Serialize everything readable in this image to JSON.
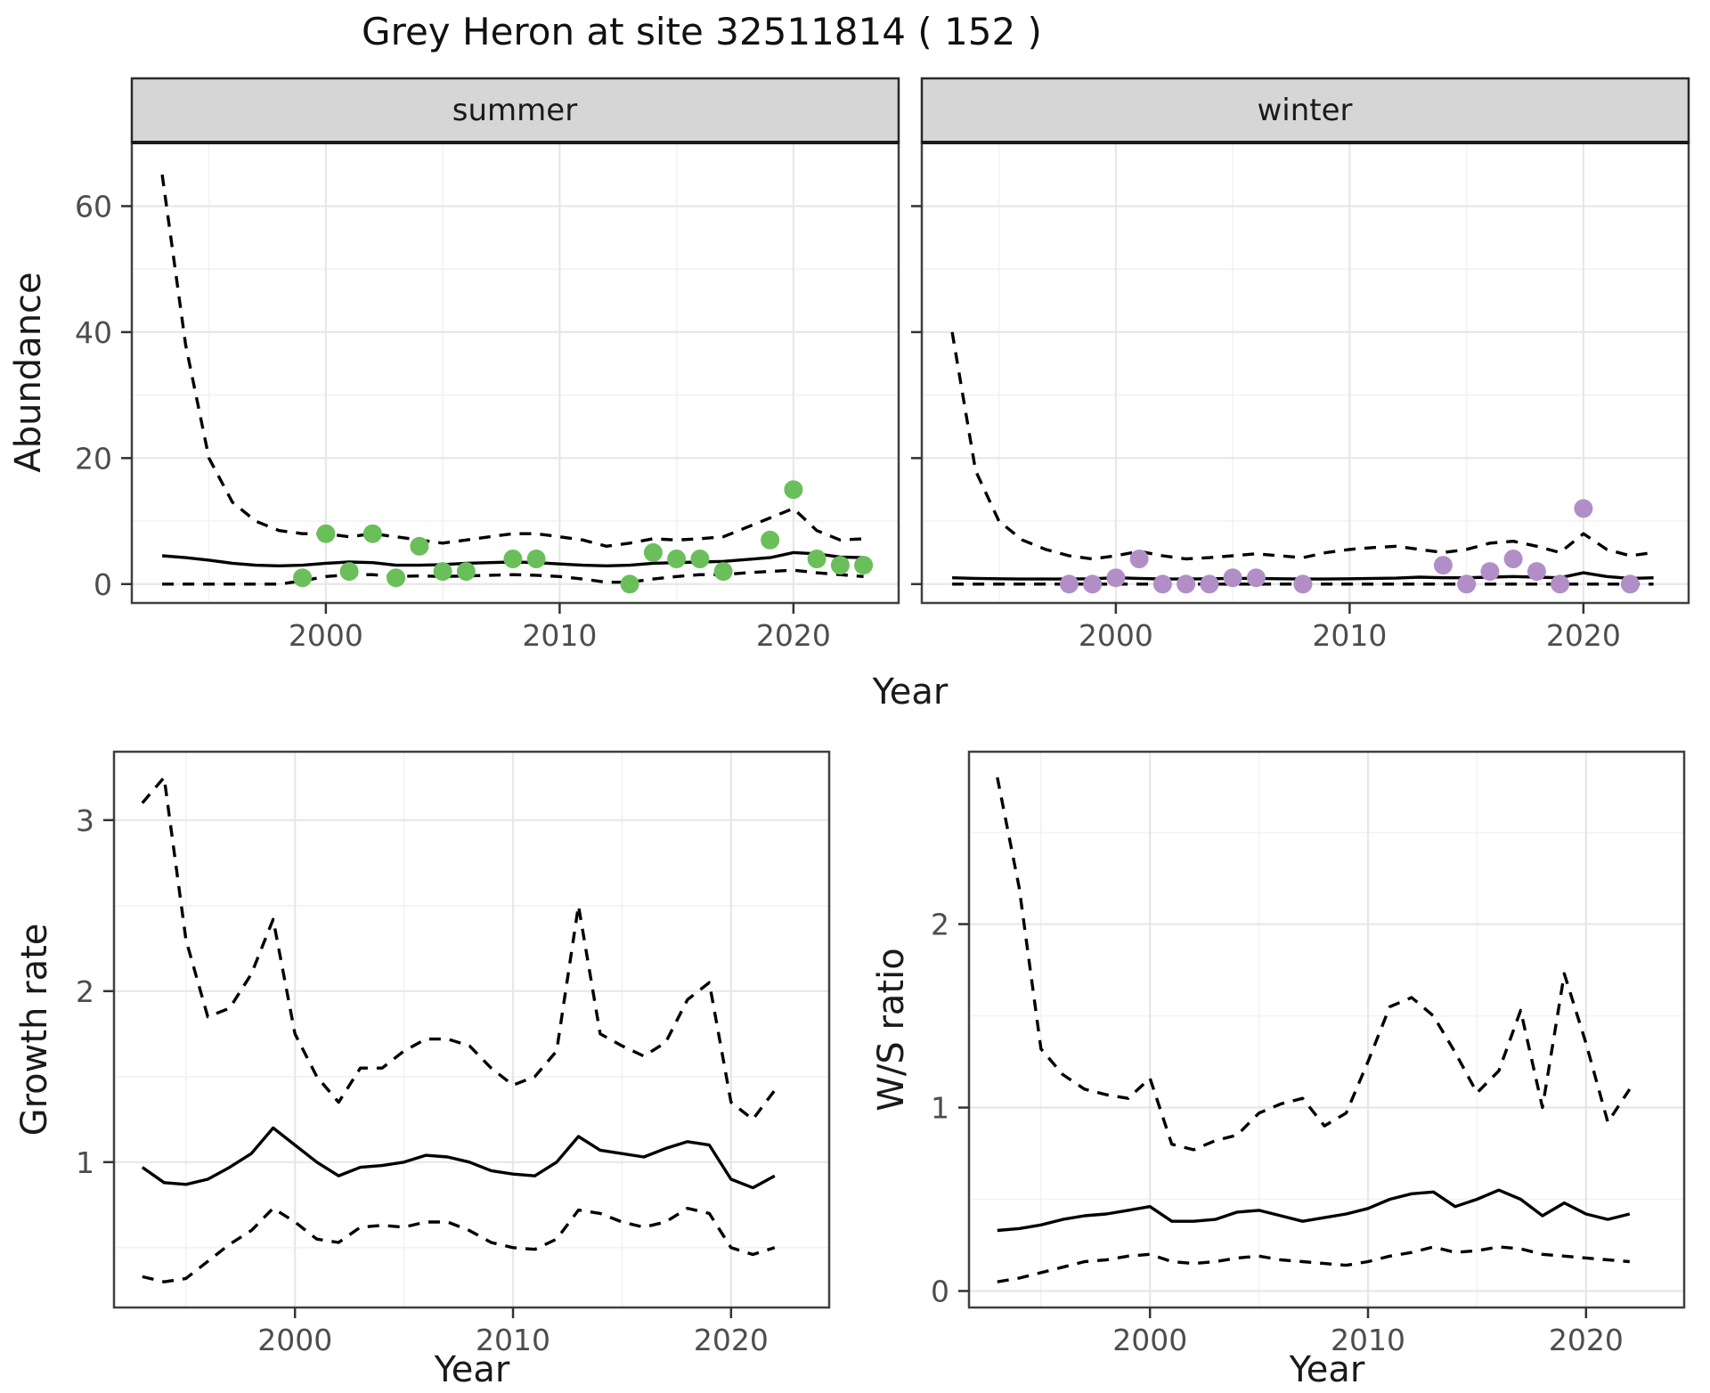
{
  "title": "Grey Heron at site 32511814 ( 152 )",
  "labels": {
    "abundance_axis": "Abundance",
    "year_axis_top": "Year",
    "year_axis_bottom_left": "Year",
    "year_axis_bottom_right": "Year",
    "growth_axis": "Growth rate",
    "ws_axis": "W/S ratio",
    "facet_summer": "summer",
    "facet_winter": "winter"
  },
  "colors": {
    "summer_point": "#6abf5a",
    "winter_point": "#b18fc6",
    "line": "#000000",
    "strip_bg": "#d6d6d6",
    "strip_border": "#2a2a2a",
    "panel_border": "#404040",
    "panel_bg": "#ffffff",
    "grid_major": "#e7e7e7",
    "grid_minor": "#f2f2f2",
    "tick_mark": "#333333",
    "tick_text": "#4d4d4d"
  },
  "chart_data": [
    {
      "id": "abundance_summer",
      "type": "line",
      "facet": "summer",
      "title": "summer",
      "xlabel": "Year",
      "ylabel": "Abundance",
      "xlim": [
        1991.7,
        2024.5
      ],
      "ylim": [
        -3,
        70.1
      ],
      "xticks": [
        2000,
        2010,
        2020
      ],
      "xminor": [
        1995,
        2005,
        2015
      ],
      "yticks": [
        0,
        20,
        40,
        60
      ],
      "yminor": [
        10,
        30,
        50
      ],
      "legend_position": "none",
      "grid": true,
      "x": [
        1993,
        1994,
        1995,
        1996,
        1997,
        1998,
        1999,
        2000,
        2001,
        2002,
        2003,
        2004,
        2005,
        2006,
        2007,
        2008,
        2009,
        2010,
        2011,
        2012,
        2013,
        2014,
        2015,
        2016,
        2017,
        2018,
        2019,
        2020,
        2021,
        2022,
        2023
      ],
      "series": [
        {
          "name": "median",
          "style": "solid",
          "values": [
            4.5,
            4.2,
            3.8,
            3.3,
            3.0,
            2.9,
            3.0,
            3.3,
            3.5,
            3.4,
            3.0,
            3.0,
            3.1,
            3.3,
            3.4,
            3.5,
            3.4,
            3.2,
            3.0,
            2.9,
            3.0,
            3.3,
            3.4,
            3.5,
            3.6,
            3.9,
            4.2,
            5.0,
            4.8,
            4.3,
            4.2
          ]
        },
        {
          "name": "upper_ci",
          "style": "dashed",
          "values": [
            65,
            38,
            20,
            13,
            10,
            8.5,
            8,
            8,
            7.5,
            8,
            7.5,
            7,
            6.5,
            7,
            7.5,
            8,
            8,
            7.5,
            7,
            6,
            6.5,
            7.2,
            7,
            7.2,
            7.5,
            9,
            10.5,
            12,
            8.5,
            7,
            7.2
          ]
        },
        {
          "name": "lower_ci",
          "style": "dashed",
          "values": [
            0,
            0,
            0,
            0,
            0,
            0,
            0.5,
            1.2,
            1.5,
            1.5,
            1.2,
            1.3,
            1.2,
            1.3,
            1.4,
            1.5,
            1.4,
            1.2,
            0.8,
            0.3,
            0.3,
            0.8,
            1.2,
            1.5,
            1.5,
            1.8,
            2.0,
            2.2,
            1.8,
            1.5,
            1.2
          ]
        }
      ],
      "points": {
        "name": "summer observed counts",
        "color": "#6abf5a",
        "x": [
          1999,
          2000,
          2001,
          2002,
          2003,
          2004,
          2005,
          2006,
          2008,
          2009,
          2013,
          2014,
          2015,
          2016,
          2017,
          2019,
          2020,
          2021,
          2022,
          2023
        ],
        "y": [
          1,
          8,
          2,
          8,
          1,
          6,
          2,
          2,
          4,
          4,
          0,
          5,
          4,
          4,
          2,
          7,
          15,
          4,
          3,
          3
        ]
      }
    },
    {
      "id": "abundance_winter",
      "type": "line",
      "facet": "winter",
      "title": "winter",
      "xlabel": "Year",
      "ylabel": "Abundance",
      "xlim": [
        1991.7,
        2024.5
      ],
      "ylim": [
        -3,
        70.1
      ],
      "xticks": [
        2000,
        2010,
        2020
      ],
      "xminor": [
        1995,
        2005,
        2015
      ],
      "yticks": [
        0,
        20,
        40,
        60
      ],
      "yminor": [
        10,
        30,
        50
      ],
      "legend_position": "none",
      "grid": true,
      "x": [
        1993,
        1994,
        1995,
        1996,
        1997,
        1998,
        1999,
        2000,
        2001,
        2002,
        2003,
        2004,
        2005,
        2006,
        2007,
        2008,
        2009,
        2010,
        2011,
        2012,
        2013,
        2014,
        2015,
        2016,
        2017,
        2018,
        2019,
        2020,
        2021,
        2022,
        2023
      ],
      "series": [
        {
          "name": "median",
          "style": "solid",
          "values": [
            1.0,
            0.9,
            0.85,
            0.8,
            0.8,
            0.8,
            0.85,
            1.0,
            0.9,
            0.8,
            0.8,
            0.85,
            0.9,
            0.9,
            0.85,
            0.8,
            0.8,
            0.85,
            0.9,
            0.95,
            1.1,
            1.0,
            1.0,
            1.1,
            1.2,
            1.1,
            1.0,
            1.8,
            1.2,
            0.9,
            1.0
          ]
        },
        {
          "name": "upper_ci",
          "style": "dashed",
          "values": [
            40,
            18,
            10,
            7,
            5.5,
            4.5,
            4.0,
            4.5,
            5.2,
            4.5,
            4.0,
            4.2,
            4.5,
            4.8,
            4.5,
            4.2,
            5.0,
            5.5,
            5.8,
            6.0,
            5.5,
            5.0,
            5.5,
            6.5,
            6.8,
            6.0,
            5.0,
            8.0,
            5.5,
            4.5,
            5.0
          ]
        },
        {
          "name": "lower_ci",
          "style": "dashed",
          "values": [
            0,
            0,
            0,
            0,
            0,
            0,
            0,
            0,
            0,
            0,
            0,
            0,
            0,
            0,
            0,
            0,
            0,
            0,
            0,
            0,
            0,
            0,
            0,
            0,
            0,
            0,
            0,
            0,
            0,
            0,
            0
          ]
        }
      ],
      "points": {
        "name": "winter observed counts",
        "color": "#b18fc6",
        "x": [
          1998,
          1999,
          2000,
          2001,
          2002,
          2003,
          2004,
          2005,
          2006,
          2008,
          2014,
          2015,
          2016,
          2017,
          2018,
          2019,
          2020,
          2022
        ],
        "y": [
          0,
          0,
          1,
          4,
          0,
          0,
          0,
          1,
          1,
          0,
          3,
          0,
          2,
          4,
          2,
          0,
          12,
          0
        ]
      }
    },
    {
      "id": "growth_rate",
      "type": "line",
      "title": "",
      "xlabel": "Year",
      "ylabel": "Growth rate",
      "xlim": [
        1991.7,
        2024.5
      ],
      "ylim": [
        0.15,
        3.4
      ],
      "xticks": [
        2000,
        2010,
        2020
      ],
      "xminor": [
        1995,
        2005,
        2015
      ],
      "yticks": [
        1,
        2,
        3
      ],
      "yminor": [
        0.5,
        1.5,
        2.5
      ],
      "legend_position": "none",
      "grid": true,
      "x": [
        1993,
        1994,
        1995,
        1996,
        1997,
        1998,
        1999,
        2000,
        2001,
        2002,
        2003,
        2004,
        2005,
        2006,
        2007,
        2008,
        2009,
        2010,
        2011,
        2012,
        2013,
        2014,
        2015,
        2016,
        2017,
        2018,
        2019,
        2020,
        2021,
        2022
      ],
      "series": [
        {
          "name": "median",
          "style": "solid",
          "values": [
            0.97,
            0.88,
            0.87,
            0.9,
            0.97,
            1.05,
            1.2,
            1.1,
            1.0,
            0.92,
            0.97,
            0.98,
            1.0,
            1.04,
            1.03,
            1.0,
            0.95,
            0.93,
            0.92,
            1.0,
            1.15,
            1.07,
            1.05,
            1.03,
            1.08,
            1.12,
            1.1,
            0.9,
            0.85,
            0.92
          ]
        },
        {
          "name": "upper_ci",
          "style": "dashed",
          "values": [
            3.1,
            3.25,
            2.3,
            1.85,
            1.9,
            2.1,
            2.42,
            1.75,
            1.5,
            1.35,
            1.55,
            1.55,
            1.65,
            1.72,
            1.72,
            1.68,
            1.55,
            1.45,
            1.5,
            1.65,
            2.5,
            1.75,
            1.68,
            1.62,
            1.7,
            1.95,
            2.05,
            1.35,
            1.25,
            1.42
          ]
        },
        {
          "name": "lower_ci",
          "style": "dashed",
          "values": [
            0.33,
            0.3,
            0.32,
            0.42,
            0.52,
            0.6,
            0.73,
            0.65,
            0.55,
            0.53,
            0.62,
            0.63,
            0.62,
            0.65,
            0.65,
            0.6,
            0.53,
            0.5,
            0.49,
            0.55,
            0.72,
            0.7,
            0.65,
            0.62,
            0.65,
            0.73,
            0.7,
            0.5,
            0.46,
            0.5
          ]
        }
      ]
    },
    {
      "id": "ws_ratio",
      "type": "line",
      "title": "",
      "xlabel": "Year",
      "ylabel": "W/S ratio",
      "xlim": [
        1991.7,
        2024.5
      ],
      "ylim": [
        -0.09,
        2.94
      ],
      "xticks": [
        2000,
        2010,
        2020
      ],
      "xminor": [
        1995,
        2005,
        2015
      ],
      "yticks": [
        0,
        1,
        2
      ],
      "yminor": [
        0.5,
        1.5,
        2.5
      ],
      "legend_position": "none",
      "grid": true,
      "x": [
        1993,
        1994,
        1995,
        1996,
        1997,
        1998,
        1999,
        2000,
        2001,
        2002,
        2003,
        2004,
        2005,
        2006,
        2007,
        2008,
        2009,
        2010,
        2011,
        2012,
        2013,
        2014,
        2015,
        2016,
        2017,
        2018,
        2019,
        2020,
        2021,
        2022
      ],
      "series": [
        {
          "name": "median",
          "style": "solid",
          "values": [
            0.33,
            0.34,
            0.36,
            0.39,
            0.41,
            0.42,
            0.44,
            0.46,
            0.38,
            0.38,
            0.39,
            0.43,
            0.44,
            0.41,
            0.38,
            0.4,
            0.42,
            0.45,
            0.5,
            0.53,
            0.54,
            0.46,
            0.5,
            0.55,
            0.5,
            0.41,
            0.48,
            0.42,
            0.39,
            0.42
          ]
        },
        {
          "name": "upper_ci",
          "style": "dashed",
          "values": [
            2.8,
            2.2,
            1.32,
            1.18,
            1.1,
            1.07,
            1.05,
            1.16,
            0.8,
            0.77,
            0.82,
            0.85,
            0.97,
            1.02,
            1.05,
            0.9,
            0.97,
            1.25,
            1.55,
            1.6,
            1.5,
            1.3,
            1.08,
            1.2,
            1.53,
            1.0,
            1.73,
            1.35,
            0.92,
            1.1
          ]
        },
        {
          "name": "lower_ci",
          "style": "dashed",
          "values": [
            0.05,
            0.07,
            0.1,
            0.13,
            0.16,
            0.17,
            0.19,
            0.2,
            0.16,
            0.15,
            0.16,
            0.18,
            0.19,
            0.17,
            0.16,
            0.15,
            0.14,
            0.16,
            0.19,
            0.21,
            0.24,
            0.21,
            0.22,
            0.24,
            0.23,
            0.2,
            0.19,
            0.18,
            0.17,
            0.16
          ]
        }
      ]
    }
  ]
}
